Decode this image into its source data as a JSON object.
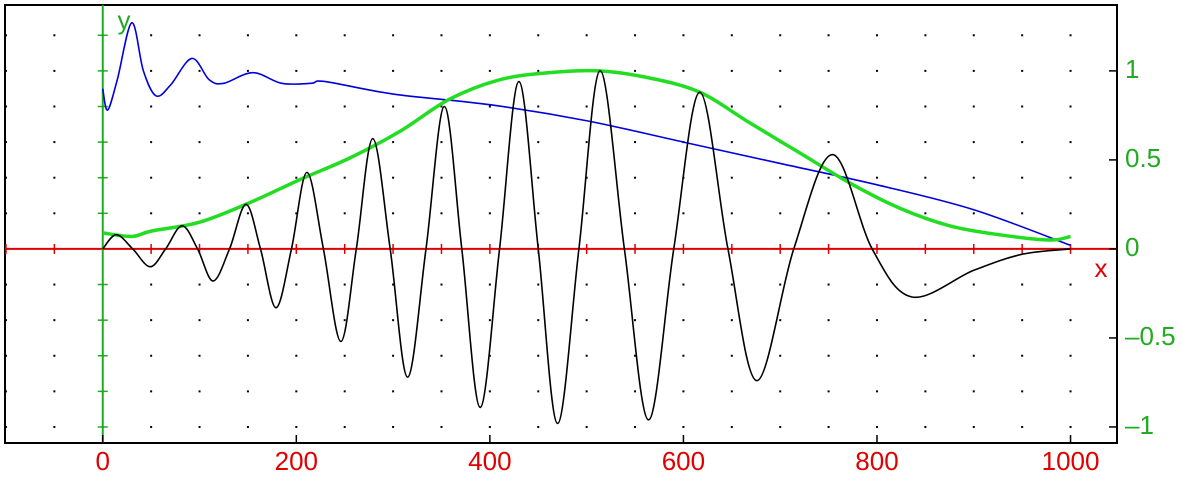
{
  "chart_data": {
    "type": "line",
    "x_label": "x",
    "y_label": "y",
    "xlim": [
      -101,
      1048
    ],
    "ylim": [
      -1.09,
      1.37
    ],
    "xticks": [
      0,
      200,
      400,
      600,
      800,
      1000
    ],
    "yticks": [
      {
        "value": -1,
        "label": "–1"
      },
      {
        "value": -0.5,
        "label": "–0.5"
      },
      0,
      0.5,
      1
    ],
    "grid": "dotted",
    "minor_xstep": 50,
    "minor_ystep": 0.2,
    "series": [
      {
        "color": "#0000dd",
        "x": [
          0,
          5,
          15,
          30,
          42,
          55,
          70,
          92,
          110,
          125,
          155,
          185,
          215,
          230,
          300,
          400,
          500,
          600,
          700,
          800,
          900,
          1000
        ],
        "values": [
          0.9,
          0.78,
          0.95,
          1.27,
          1.0,
          0.86,
          0.92,
          1.07,
          0.95,
          0.93,
          0.99,
          0.93,
          0.93,
          0.94,
          0.87,
          0.81,
          0.72,
          0.6,
          0.48,
          0.36,
          0.22,
          0.02
        ]
      },
      {
        "color": "#22dd22",
        "x": [
          0,
          30,
          50,
          100,
          152,
          204,
          255,
          307,
          358,
          410,
          462,
          513,
          565,
          617,
          668,
          720,
          772,
          823,
          875,
          926,
          978,
          1000
        ],
        "values": [
          0.09,
          0.07,
          0.1,
          0.15,
          0.26,
          0.39,
          0.51,
          0.66,
          0.84,
          0.95,
          0.99,
          1.0,
          0.96,
          0.88,
          0.71,
          0.54,
          0.37,
          0.23,
          0.13,
          0.08,
          0.05,
          0.07
        ]
      },
      {
        "color": "#000000",
        "x": [
          0,
          14,
          31,
          49,
          65,
          82,
          98,
          114,
          131,
          148,
          163,
          179,
          195,
          211,
          228,
          246,
          262,
          279,
          297,
          315,
          334,
          353,
          371,
          390,
          410,
          430,
          450,
          470,
          492,
          514,
          539,
          564,
          590,
          617,
          646,
          676,
          714,
          754,
          795,
          836,
          900,
          950,
          1000
        ],
        "values": [
          0,
          0.08,
          0,
          -0.1,
          0,
          0.13,
          0,
          -0.18,
          0,
          0.25,
          0,
          -0.33,
          0,
          0.43,
          0,
          -0.52,
          0,
          0.62,
          0,
          -0.72,
          0,
          0.8,
          0,
          -0.89,
          0,
          0.94,
          0,
          -0.98,
          0,
          1.0,
          0,
          -0.96,
          0,
          0.88,
          0,
          -0.74,
          0,
          0.53,
          0,
          -0.27,
          -0.12,
          -0.03,
          0
        ]
      }
    ]
  }
}
